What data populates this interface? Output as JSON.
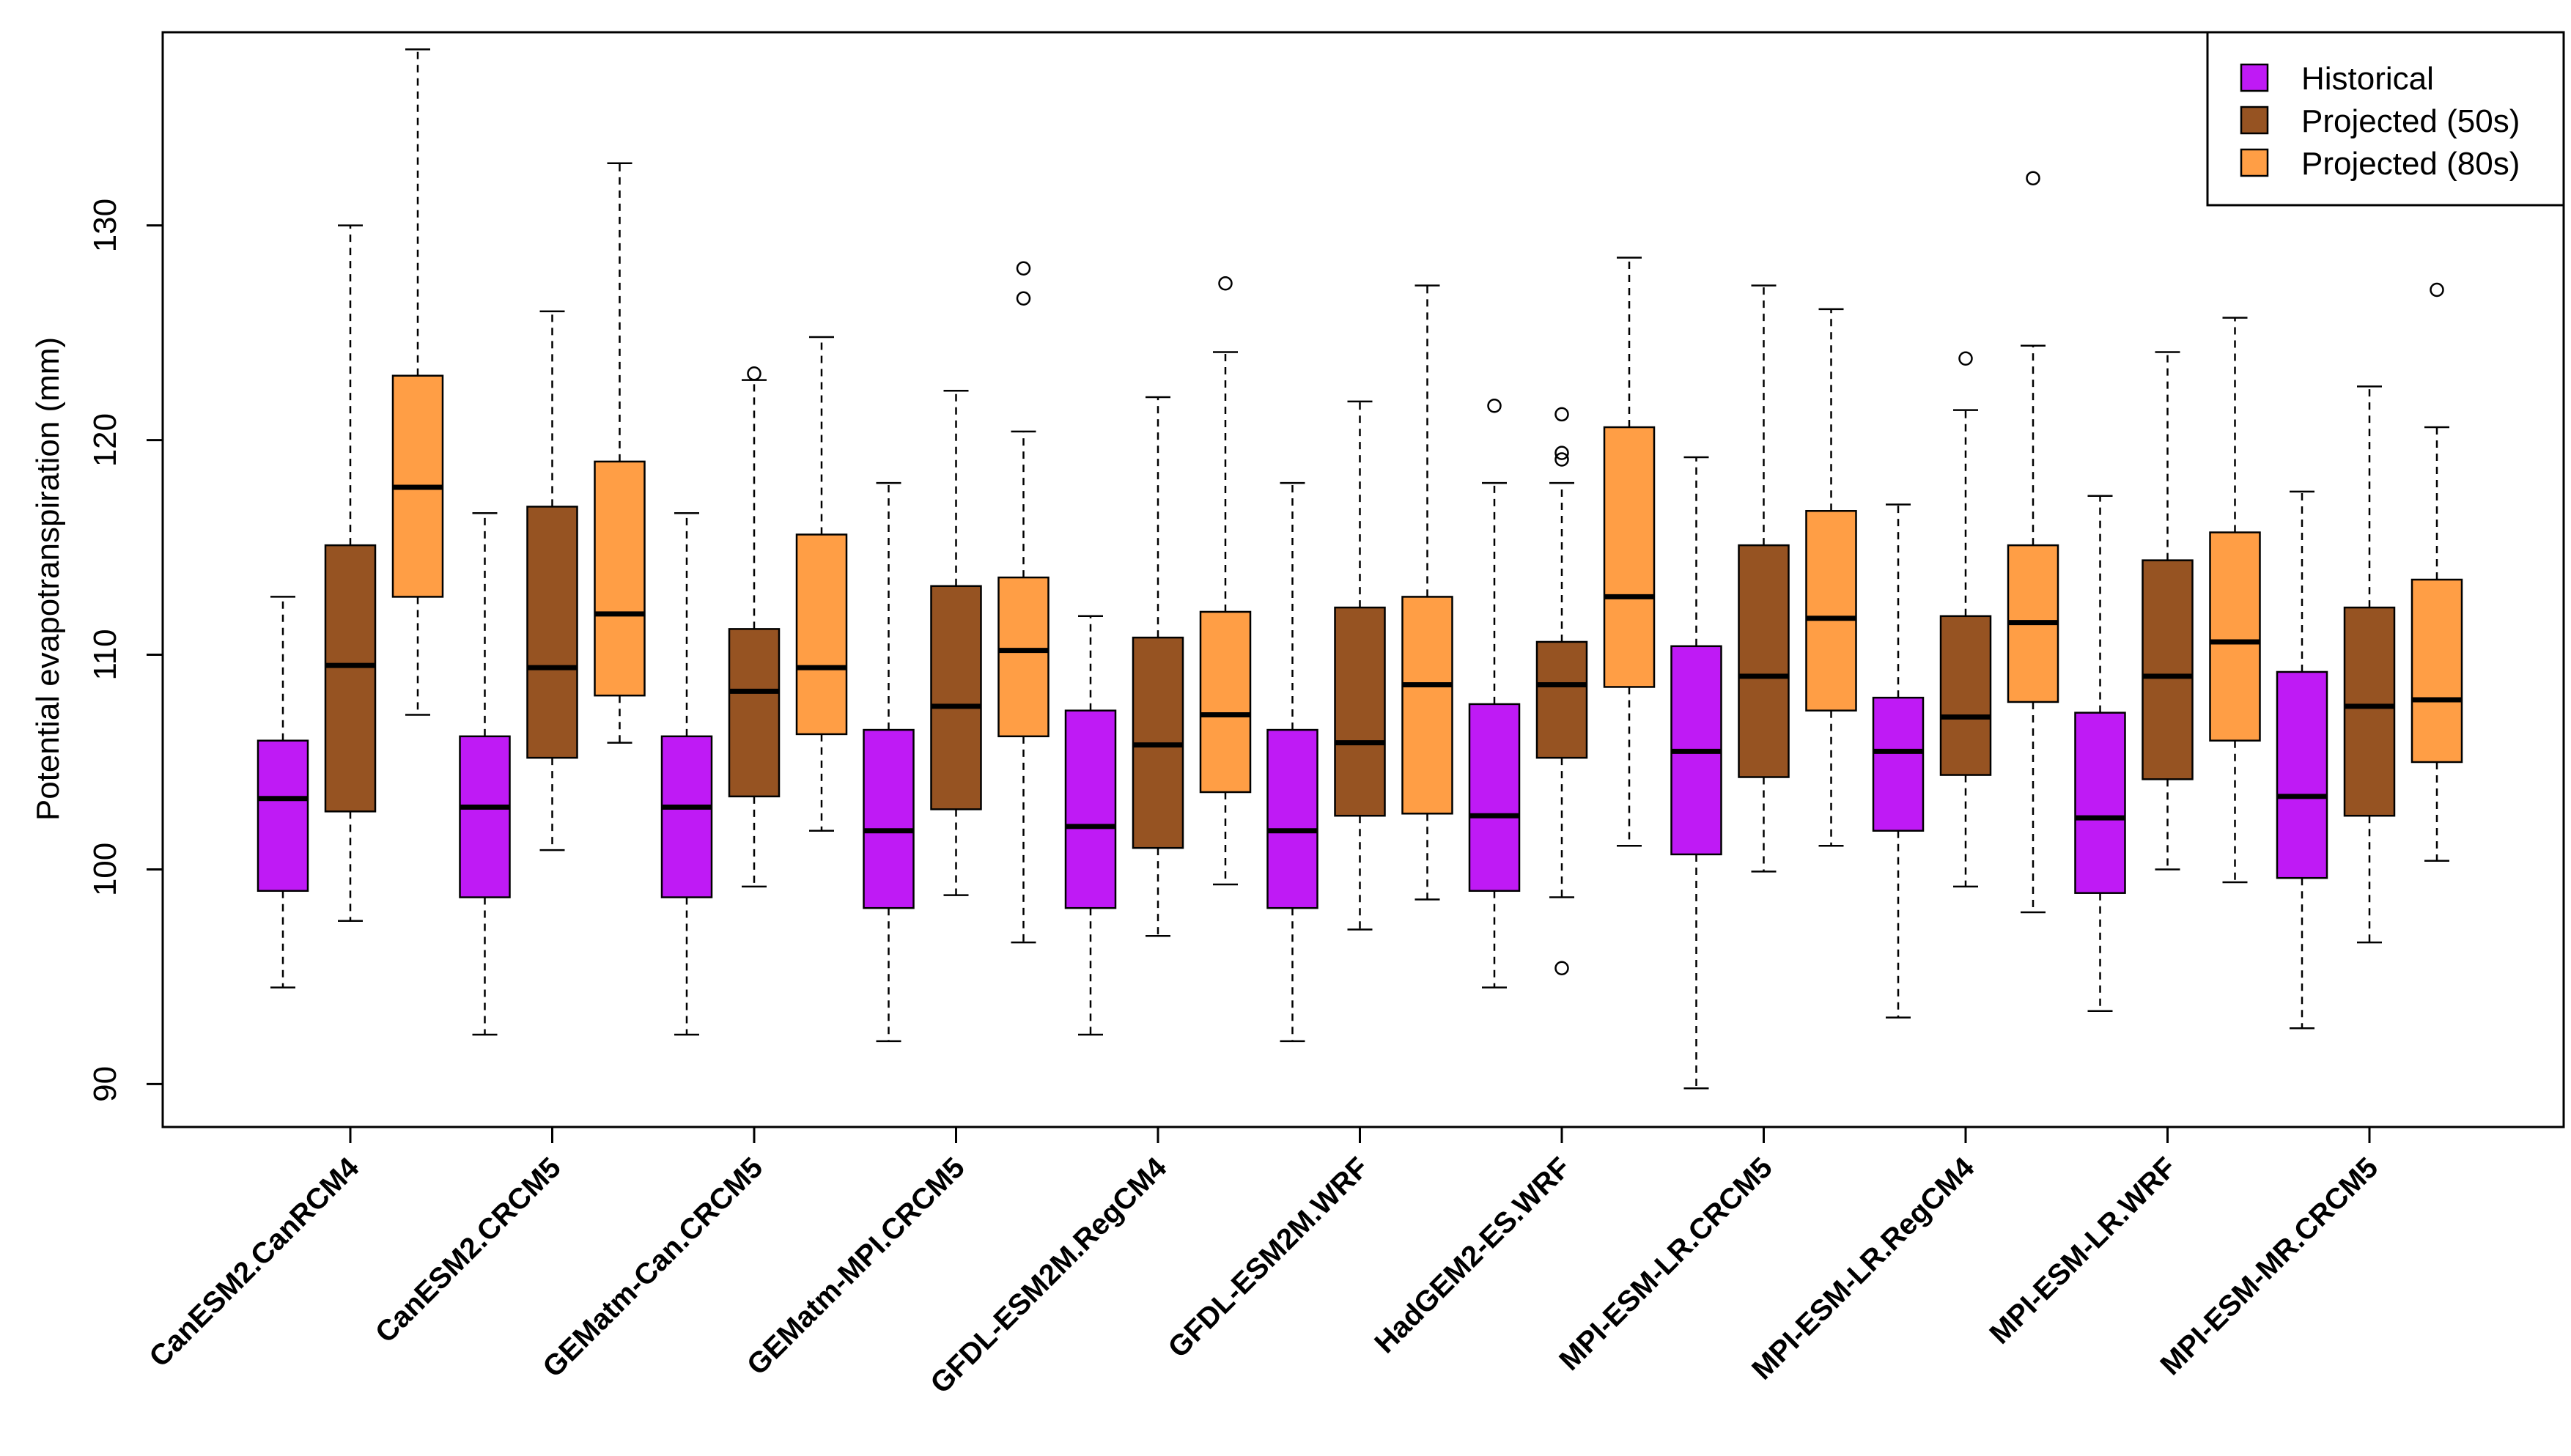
{
  "chart_data": {
    "type": "boxplot",
    "title": "",
    "xlabel": "",
    "ylabel": "Potential evapotranspiration  (mm)",
    "ylim": [
      88,
      139
    ],
    "yticks": [
      90,
      100,
      110,
      120,
      130
    ],
    "grid": false,
    "legend_position": "top-right",
    "categories": [
      "CanESM2.CanRCM4",
      "CanESM2.CRCM5",
      "GEMatm-Can.CRCM5",
      "GEMatm-MPI.CRCM5",
      "GFDL-ESM2M.RegCM4",
      "GFDL-ESM2M.WRF",
      "HadGEM2-ES.WRF",
      "MPI-ESM-LR.CRCM5",
      "MPI-ESM-LR.RegCM4",
      "MPI-ESM-LR.WRF",
      "MPI-ESM-MR.CRCM5"
    ],
    "series": [
      {
        "name": "Historical",
        "color": "#BF1AF5",
        "boxes": [
          {
            "min": 94.5,
            "q1": 99.0,
            "median": 103.3,
            "q3": 106.0,
            "max": 112.7,
            "outliers": []
          },
          {
            "min": 92.3,
            "q1": 98.7,
            "median": 102.9,
            "q3": 106.2,
            "max": 116.6,
            "outliers": []
          },
          {
            "min": 92.3,
            "q1": 98.7,
            "median": 102.9,
            "q3": 106.2,
            "max": 116.6,
            "outliers": []
          },
          {
            "min": 92.0,
            "q1": 98.2,
            "median": 101.8,
            "q3": 106.5,
            "max": 118.0,
            "outliers": []
          },
          {
            "min": 92.3,
            "q1": 98.2,
            "median": 102.0,
            "q3": 107.4,
            "max": 111.8,
            "outliers": []
          },
          {
            "min": 92.0,
            "q1": 98.2,
            "median": 101.8,
            "q3": 106.5,
            "max": 118.0,
            "outliers": []
          },
          {
            "min": 94.5,
            "q1": 99.0,
            "median": 102.5,
            "q3": 107.7,
            "max": 118.0,
            "outliers": [
              121.6
            ]
          },
          {
            "min": 89.8,
            "q1": 100.7,
            "median": 105.5,
            "q3": 110.4,
            "max": 119.2,
            "outliers": []
          },
          {
            "min": 93.1,
            "q1": 101.8,
            "median": 105.5,
            "q3": 108.0,
            "max": 117.0,
            "outliers": []
          },
          {
            "min": 93.4,
            "q1": 98.9,
            "median": 102.4,
            "q3": 107.3,
            "max": 117.4,
            "outliers": []
          },
          {
            "min": 92.6,
            "q1": 99.6,
            "median": 103.4,
            "q3": 109.2,
            "max": 117.6,
            "outliers": []
          }
        ]
      },
      {
        "name": "Projected (50s)",
        "color": "#965322",
        "boxes": [
          {
            "min": 97.6,
            "q1": 102.7,
            "median": 109.5,
            "q3": 115.1,
            "max": 130.0,
            "outliers": []
          },
          {
            "min": 100.9,
            "q1": 105.2,
            "median": 109.4,
            "q3": 116.9,
            "max": 126.0,
            "outliers": []
          },
          {
            "min": 99.2,
            "q1": 103.4,
            "median": 108.3,
            "q3": 111.2,
            "max": 122.8,
            "outliers": [
              123.1
            ]
          },
          {
            "min": 98.8,
            "q1": 102.8,
            "median": 107.6,
            "q3": 113.2,
            "max": 122.3,
            "outliers": []
          },
          {
            "min": 96.9,
            "q1": 101.0,
            "median": 105.8,
            "q3": 110.8,
            "max": 122.0,
            "outliers": []
          },
          {
            "min": 97.2,
            "q1": 102.5,
            "median": 105.9,
            "q3": 112.2,
            "max": 121.8,
            "outliers": []
          },
          {
            "min": 98.7,
            "q1": 105.2,
            "median": 108.6,
            "q3": 110.6,
            "max": 118.0,
            "outliers": [
              95.4,
              119.1,
              119.4,
              121.2
            ]
          },
          {
            "min": 99.9,
            "q1": 104.3,
            "median": 109.0,
            "q3": 115.1,
            "max": 127.2,
            "outliers": []
          },
          {
            "min": 99.2,
            "q1": 104.4,
            "median": 107.1,
            "q3": 111.8,
            "max": 121.4,
            "outliers": [
              123.8
            ]
          },
          {
            "min": 100.0,
            "q1": 104.2,
            "median": 109.0,
            "q3": 114.4,
            "max": 124.1,
            "outliers": []
          },
          {
            "min": 96.6,
            "q1": 102.5,
            "median": 107.6,
            "q3": 112.2,
            "max": 122.5,
            "outliers": []
          }
        ]
      },
      {
        "name": "Projected (80s)",
        "color": "#FF9E45",
        "boxes": [
          {
            "min": 107.2,
            "q1": 112.7,
            "median": 117.8,
            "q3": 123.0,
            "max": 138.2,
            "outliers": []
          },
          {
            "min": 105.9,
            "q1": 108.1,
            "median": 111.9,
            "q3": 119.0,
            "max": 132.9,
            "outliers": []
          },
          {
            "min": 101.8,
            "q1": 106.3,
            "median": 109.4,
            "q3": 115.6,
            "max": 124.8,
            "outliers": []
          },
          {
            "min": 96.6,
            "q1": 106.2,
            "median": 110.2,
            "q3": 113.6,
            "max": 120.4,
            "outliers": [
              126.6,
              128.0
            ]
          },
          {
            "min": 99.3,
            "q1": 103.6,
            "median": 107.2,
            "q3": 112.0,
            "max": 124.1,
            "outliers": [
              127.3
            ]
          },
          {
            "min": 98.6,
            "q1": 102.6,
            "median": 108.6,
            "q3": 112.7,
            "max": 127.2,
            "outliers": []
          },
          {
            "min": 101.1,
            "q1": 108.5,
            "median": 112.7,
            "q3": 120.6,
            "max": 128.5,
            "outliers": []
          },
          {
            "min": 101.1,
            "q1": 107.4,
            "median": 111.7,
            "q3": 116.7,
            "max": 126.1,
            "outliers": []
          },
          {
            "min": 98.0,
            "q1": 107.8,
            "median": 111.5,
            "q3": 115.1,
            "max": 124.4,
            "outliers": [
              132.2
            ]
          },
          {
            "min": 99.4,
            "q1": 106.0,
            "median": 110.6,
            "q3": 115.7,
            "max": 125.7,
            "outliers": []
          },
          {
            "min": 100.4,
            "q1": 105.0,
            "median": 107.9,
            "q3": 113.5,
            "max": 120.6,
            "outliers": [
              127.0
            ]
          }
        ]
      }
    ]
  }
}
